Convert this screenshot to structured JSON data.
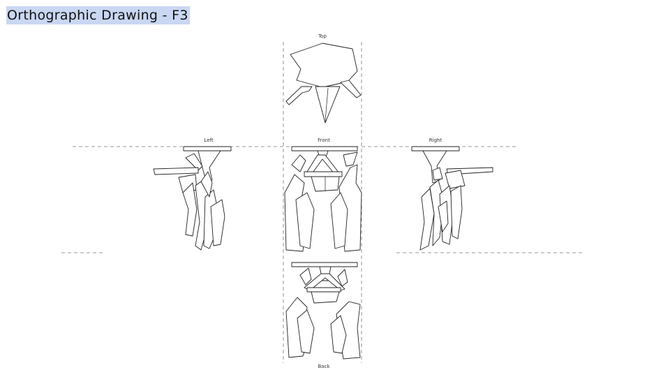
{
  "title": "Orthographic Drawing - F3",
  "views": {
    "top": "Top",
    "left": "Left",
    "front": "Front",
    "right": "Right",
    "back": "Back"
  },
  "colors": {
    "title_highlight": "#c9d7f2",
    "line": "#222222",
    "guide": "#777777"
  }
}
